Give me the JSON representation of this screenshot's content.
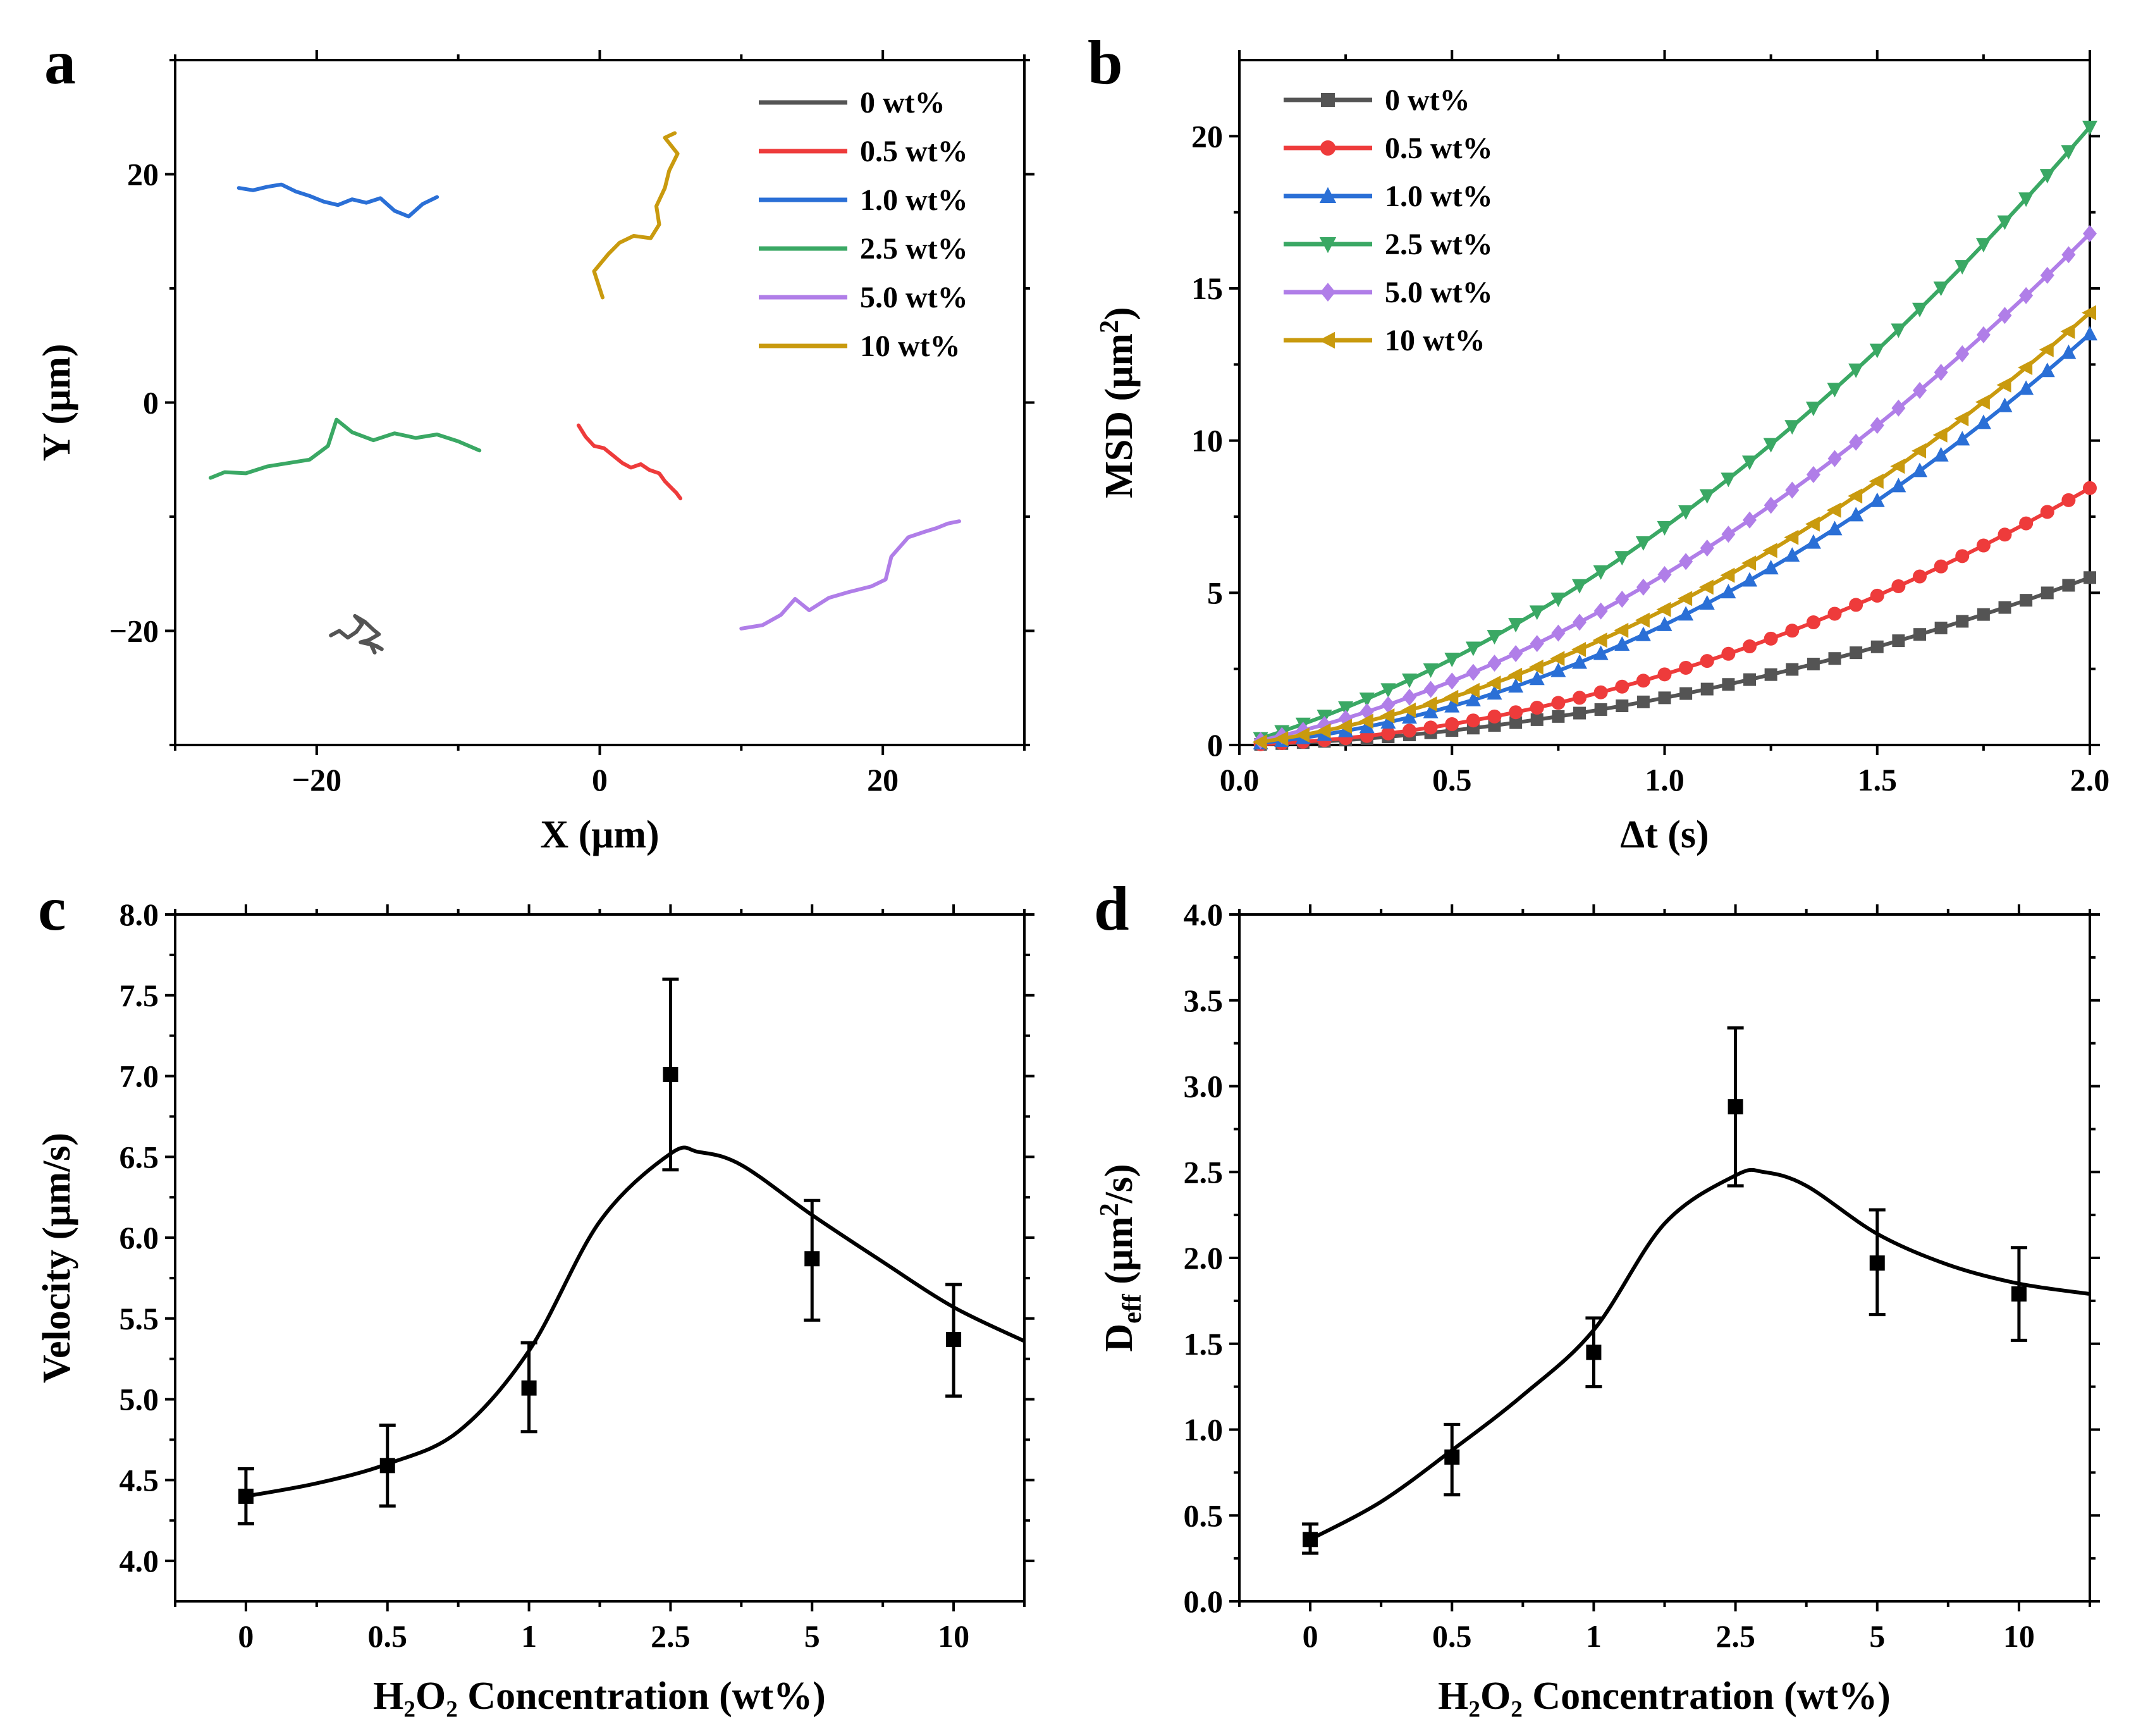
{
  "colors": {
    "0 wt%": "#545454",
    "0.5 wt%": "#ee3b3b",
    "1.0 wt%": "#2a6fd6",
    "2.5 wt%": "#3aa864",
    "5.0 wt%": "#b07ee8",
    "10 wt%": "#c99a0e"
  },
  "chart_data": [
    {
      "panel": "a",
      "type": "line",
      "title": "",
      "xlabel": "X (μm)",
      "ylabel": "Y (μm)",
      "xlim": [
        -30,
        30
      ],
      "ylim": [
        -30,
        30
      ],
      "xticks": [
        -20,
        0,
        20
      ],
      "yticks": [
        -20,
        0,
        20
      ],
      "xtick_labels": [
        "−20",
        "0",
        "20"
      ],
      "ytick_labels": [
        "−20",
        "0",
        "20"
      ],
      "legend_position": "top-right",
      "series": [
        {
          "name": "0 wt%",
          "x": [
            -19,
            -18.4,
            -17.8,
            -17.2,
            -16.8,
            -17.3,
            -16.6,
            -16.0,
            -15.6,
            -16.3,
            -16.9,
            -15.8,
            -15.4,
            -16.2,
            -15.9
          ],
          "y": [
            -20.4,
            -20.0,
            -20.6,
            -20.1,
            -19.4,
            -18.7,
            -19.2,
            -19.9,
            -20.3,
            -20.8,
            -21.0,
            -21.3,
            -21.6,
            -21.1,
            -21.9
          ]
        },
        {
          "name": "0.5 wt%",
          "x": [
            -1.5,
            -1.0,
            -0.4,
            0.3,
            0.9,
            1.6,
            2.2,
            2.9,
            3.5,
            4.2,
            4.6,
            5.0,
            5.4,
            5.7
          ],
          "y": [
            -2.0,
            -3.0,
            -3.8,
            -4.0,
            -4.6,
            -5.3,
            -5.7,
            -5.4,
            -5.9,
            -6.2,
            -6.9,
            -7.4,
            -7.9,
            -8.4
          ]
        },
        {
          "name": "1.0 wt%",
          "x": [
            -25.5,
            -24.5,
            -23.5,
            -22.5,
            -21.5,
            -20.5,
            -19.5,
            -18.5,
            -17.5,
            -16.5,
            -15.5,
            -14.5,
            -13.5,
            -12.5,
            -11.5
          ],
          "y": [
            18.8,
            18.6,
            18.9,
            19.1,
            18.5,
            18.1,
            17.6,
            17.3,
            17.8,
            17.5,
            17.9,
            16.8,
            16.3,
            17.4,
            18.0
          ]
        },
        {
          "name": "2.5 wt%",
          "x": [
            -27.5,
            -26.5,
            -25,
            -23.5,
            -22,
            -20.5,
            -19.2,
            -18.6,
            -17.5,
            -16,
            -14.5,
            -13,
            -11.5,
            -10,
            -8.5
          ],
          "y": [
            -6.6,
            -6.1,
            -6.2,
            -5.6,
            -5.3,
            -5.0,
            -3.8,
            -1.5,
            -2.6,
            -3.3,
            -2.7,
            -3.1,
            -2.8,
            -3.4,
            -4.2
          ]
        },
        {
          "name": "5.0 wt%",
          "x": [
            10,
            11.5,
            12.8,
            13.8,
            14.8,
            16.2,
            17.6,
            19.2,
            20.2,
            20.6,
            21.8,
            23.0,
            23.8,
            24.6,
            25.4
          ],
          "y": [
            -19.8,
            -19.5,
            -18.6,
            -17.2,
            -18.2,
            -17.1,
            -16.6,
            -16.1,
            -15.5,
            -13.5,
            -11.8,
            -11.3,
            -11.0,
            -10.6,
            -10.4
          ]
        },
        {
          "name": "10 wt%",
          "x": [
            0.2,
            -0.4,
            0.6,
            1.4,
            2.4,
            3.6,
            4.2,
            4.0,
            4.6,
            4.9,
            5.5,
            4.6,
            5.3
          ],
          "y": [
            9.2,
            11.5,
            13.0,
            14.0,
            14.6,
            14.4,
            15.6,
            17.2,
            18.8,
            20.3,
            21.8,
            23.2,
            23.6
          ]
        }
      ]
    },
    {
      "panel": "b",
      "type": "line",
      "title": "",
      "xlabel": "Δt (s)",
      "ylabel": "MSD (μm",
      "ylabel_superscript": "2",
      "ylabel_close": ")",
      "xlim": [
        0.0,
        2.0
      ],
      "ylim": [
        0,
        22.5
      ],
      "xticks": [
        0.0,
        0.5,
        1.0,
        1.5,
        2.0
      ],
      "yticks": [
        0,
        5,
        10,
        15,
        20
      ],
      "xtick_labels": [
        "0.0",
        "0.5",
        "1.0",
        "1.5",
        "2.0"
      ],
      "ytick_labels": [
        "0",
        "5",
        "10",
        "15",
        "20"
      ],
      "legend_position": "top-left",
      "series": [
        {
          "name": "0 wt%",
          "marker": "square",
          "a": 1.2,
          "b": 0.35
        },
        {
          "name": "0.5 wt%",
          "marker": "circle",
          "a": 1.9,
          "b": 0.42
        },
        {
          "name": "1.0 wt%",
          "marker": "triangle-up",
          "a": 2.8,
          "b": 1.15
        },
        {
          "name": "2.5 wt%",
          "marker": "triangle-down",
          "a": 3.0,
          "b": 4.15
        },
        {
          "name": "5.0 wt%",
          "marker": "diamond",
          "a": 2.8,
          "b": 2.8
        },
        {
          "name": "10 wt%",
          "marker": "triangle-left",
          "a": 2.65,
          "b": 1.8
        }
      ]
    },
    {
      "panel": "c",
      "type": "scatter",
      "title": "",
      "xlabel": "H₂O₂ Concentration (wt%)",
      "ylabel": "Velocity (μm/s)",
      "categories": [
        "0",
        "0.5",
        "1",
        "2.5",
        "5",
        "10"
      ],
      "values": [
        4.4,
        4.59,
        5.07,
        7.01,
        5.87,
        5.37
      ],
      "error_low": [
        4.23,
        4.34,
        4.8,
        6.42,
        5.49,
        5.02
      ],
      "error_high": [
        4.57,
        4.84,
        5.35,
        7.6,
        6.23,
        5.71
      ],
      "fit_curve": [
        [
          0,
          4.4
        ],
        [
          0.5,
          4.48
        ],
        [
          1,
          4.6
        ],
        [
          1.5,
          4.8
        ],
        [
          2,
          5.3
        ],
        [
          2.5,
          6.1
        ],
        [
          3,
          6.52
        ],
        [
          3.2,
          6.53
        ],
        [
          3.5,
          6.45
        ],
        [
          4,
          6.14
        ],
        [
          4.5,
          5.85
        ],
        [
          5,
          5.57
        ],
        [
          5.5,
          5.36
        ]
      ],
      "ylim": [
        3.75,
        8.0
      ],
      "yticks": [
        4.0,
        4.5,
        5.0,
        5.5,
        6.0,
        6.5,
        7.0,
        7.5,
        8.0
      ],
      "ytick_labels": [
        "4.0",
        "4.5",
        "5.0",
        "5.5",
        "6.0",
        "6.5",
        "7.0",
        "7.5",
        "8.0"
      ]
    },
    {
      "panel": "d",
      "type": "scatter",
      "title": "",
      "xlabel": "H₂O₂  Concentration (wt%)",
      "ylabel": "D",
      "ylabel_sub": "eff",
      "ylabel_rest": " (μm",
      "ylabel_superscript": "2",
      "ylabel_close": "/s)",
      "categories": [
        "0",
        "0.5",
        "1",
        "2.5",
        "5",
        "10"
      ],
      "values": [
        0.36,
        0.84,
        1.45,
        2.88,
        1.97,
        1.79
      ],
      "error_low": [
        0.28,
        0.62,
        1.25,
        2.42,
        1.67,
        1.52
      ],
      "error_high": [
        0.45,
        1.03,
        1.65,
        3.34,
        2.28,
        2.06
      ],
      "fit_curve": [
        [
          0,
          0.36
        ],
        [
          0.5,
          0.58
        ],
        [
          1,
          0.88
        ],
        [
          1.5,
          1.2
        ],
        [
          2,
          1.58
        ],
        [
          2.5,
          2.2
        ],
        [
          3,
          2.48
        ],
        [
          3.2,
          2.5
        ],
        [
          3.5,
          2.42
        ],
        [
          4,
          2.14
        ],
        [
          4.5,
          1.96
        ],
        [
          5,
          1.85
        ],
        [
          5.5,
          1.79
        ]
      ],
      "ylim": [
        0.0,
        4.0
      ],
      "yticks": [
        0.0,
        0.5,
        1.0,
        1.5,
        2.0,
        2.5,
        3.0,
        3.5,
        4.0
      ],
      "ytick_labels": [
        "0.0",
        "0.5",
        "1.0",
        "1.5",
        "2.0",
        "2.5",
        "3.0",
        "3.5",
        "4.0"
      ]
    }
  ],
  "panel_labels": [
    "a",
    "b",
    "c",
    "d"
  ]
}
